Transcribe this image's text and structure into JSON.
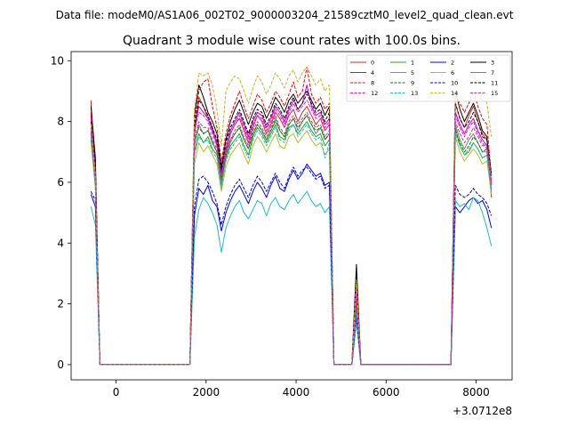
{
  "figure": {
    "suptitle": "Data file: modeM0/AS1A06_002T02_9000003204_21589cztM0_level2_quad_clean.evt"
  },
  "chart_data": {
    "type": "line",
    "title": "Quadrant 3 module wise count rates with 100.0s bins.",
    "xlabel": "",
    "ylabel": "",
    "x_offset_label": "+3.0712e8",
    "xlim": [
      -1000,
      8800
    ],
    "ylim": [
      -0.5,
      10.3
    ],
    "xticks": [
      0,
      2000,
      4000,
      6000,
      8000
    ],
    "xtick_labels": [
      "0",
      "2000",
      "4000",
      "6000",
      "8000"
    ],
    "yticks": [
      0,
      2,
      4,
      6,
      8,
      10
    ],
    "ytick_labels": [
      "0",
      "2",
      "4",
      "6",
      "8",
      "10"
    ],
    "grid": false,
    "legend_position": "top-right",
    "legend_columns": 4,
    "x": [
      -560,
      -460,
      -360,
      -260,
      1640,
      1740,
      1840,
      1940,
      2040,
      2140,
      2240,
      2340,
      2440,
      2540,
      2640,
      2740,
      2840,
      2940,
      3040,
      3140,
      3240,
      3340,
      3440,
      3540,
      3640,
      3740,
      3840,
      3940,
      4040,
      4140,
      4240,
      4340,
      4440,
      4540,
      4640,
      4740,
      4840,
      4940,
      5240,
      5340,
      5440,
      7440,
      7540,
      7640,
      7740,
      7840,
      7940,
      8040,
      8140,
      8240,
      8340
    ],
    "series": [
      {
        "name": "0",
        "style": "solid",
        "color": "#d62728",
        "values": [
          8.7,
          6.2,
          0.0,
          0.0,
          0.0,
          7.5,
          8.8,
          8.5,
          8.1,
          7.8,
          7.2,
          6.2,
          7.0,
          7.6,
          7.9,
          8.1,
          7.7,
          7.3,
          7.8,
          8.2,
          8.0,
          7.6,
          7.9,
          8.3,
          8.1,
          7.8,
          8.2,
          8.4,
          8.0,
          8.3,
          8.5,
          8.2,
          7.9,
          8.1,
          7.7,
          7.9,
          0.0,
          0.0,
          0.0,
          2.2,
          0.0,
          0.0,
          8.6,
          8.1,
          7.8,
          8.2,
          8.5,
          8.0,
          7.6,
          7.4,
          5.5
        ]
      },
      {
        "name": "1",
        "style": "solid",
        "color": "#2ca02c",
        "values": [
          7.4,
          5.9,
          0.0,
          0.0,
          0.0,
          7.0,
          7.6,
          7.3,
          7.5,
          7.1,
          6.9,
          5.9,
          6.8,
          7.2,
          7.4,
          7.6,
          7.2,
          6.9,
          7.5,
          7.8,
          7.6,
          7.3,
          7.6,
          7.9,
          7.5,
          7.4,
          7.8,
          7.9,
          7.6,
          7.8,
          8.0,
          7.7,
          7.5,
          7.6,
          7.2,
          7.4,
          0.0,
          0.0,
          0.0,
          1.8,
          0.0,
          0.0,
          7.8,
          7.2,
          6.9,
          7.0,
          7.3,
          7.1,
          6.8,
          6.9,
          5.8
        ]
      },
      {
        "name": "2",
        "style": "solid",
        "color": "#0000ff",
        "values": [
          5.6,
          5.2,
          0.0,
          0.0,
          0.0,
          4.9,
          5.8,
          5.6,
          5.9,
          5.4,
          5.2,
          4.4,
          5.0,
          5.4,
          5.7,
          5.9,
          5.6,
          5.3,
          5.7,
          6.0,
          5.8,
          5.5,
          5.9,
          6.2,
          5.8,
          5.7,
          6.1,
          6.4,
          6.1,
          6.3,
          6.6,
          6.4,
          6.2,
          6.3,
          5.9,
          6.0,
          0.0,
          0.0,
          0.0,
          1.5,
          0.0,
          0.0,
          5.2,
          5.0,
          5.2,
          5.4,
          5.5,
          5.3,
          5.4,
          5.1,
          4.5
        ]
      },
      {
        "name": "3",
        "style": "solid",
        "color": "#000000",
        "values": [
          8.5,
          6.8,
          0.0,
          0.0,
          0.0,
          8.2,
          9.2,
          8.8,
          8.3,
          8.0,
          7.6,
          6.5,
          7.4,
          8.0,
          8.4,
          8.7,
          8.3,
          7.9,
          8.3,
          8.6,
          8.5,
          8.1,
          8.4,
          8.8,
          8.6,
          8.3,
          8.7,
          8.9,
          8.6,
          8.8,
          9.0,
          8.7,
          8.4,
          8.6,
          8.2,
          8.5,
          0.0,
          0.0,
          0.0,
          3.3,
          0.0,
          0.0,
          9.0,
          8.4,
          8.0,
          8.3,
          8.6,
          8.2,
          7.7,
          7.5,
          5.6
        ]
      },
      {
        "name": "4",
        "style": "solid",
        "color": "#bf00bf",
        "values": [
          8.2,
          6.5,
          0.0,
          0.0,
          0.0,
          7.8,
          8.5,
          8.3,
          8.1,
          7.7,
          7.3,
          6.3,
          7.1,
          7.7,
          8.0,
          8.3,
          7.9,
          7.5,
          8.0,
          8.3,
          8.2,
          7.8,
          8.1,
          8.5,
          8.3,
          8.0,
          8.4,
          8.7,
          8.4,
          8.6,
          9.2,
          8.5,
          8.2,
          8.3,
          7.9,
          8.1,
          0.0,
          0.0,
          0.0,
          2.5,
          0.0,
          0.0,
          8.3,
          7.9,
          7.6,
          7.9,
          8.1,
          7.7,
          7.4,
          7.2,
          5.9
        ]
      },
      {
        "name": "5",
        "style": "solid",
        "color": "#17becf",
        "values": [
          5.2,
          4.6,
          0.0,
          0.0,
          0.0,
          4.2,
          5.1,
          5.5,
          5.3,
          5.0,
          4.6,
          3.7,
          4.5,
          4.9,
          5.2,
          5.4,
          5.0,
          4.8,
          5.1,
          5.4,
          5.3,
          4.9,
          5.3,
          5.5,
          5.2,
          5.1,
          5.4,
          5.6,
          5.3,
          5.5,
          5.7,
          5.4,
          5.2,
          5.3,
          5.0,
          5.2,
          0.0,
          0.0,
          0.0,
          1.4,
          0.0,
          0.0,
          5.4,
          5.2,
          5.3,
          5.1,
          5.5,
          5.4,
          5.0,
          4.5,
          3.9
        ]
      },
      {
        "name": "6",
        "style": "solid",
        "color": "#bcbd22",
        "values": [
          7.3,
          5.8,
          0.0,
          0.0,
          0.0,
          6.6,
          7.3,
          7.0,
          7.2,
          6.9,
          6.6,
          5.7,
          6.5,
          6.9,
          7.1,
          7.3,
          6.9,
          6.6,
          7.2,
          7.5,
          7.3,
          7.0,
          7.3,
          7.6,
          7.2,
          7.1,
          7.5,
          7.6,
          7.3,
          7.5,
          7.7,
          7.4,
          7.2,
          7.3,
          6.9,
          7.1,
          0.0,
          0.0,
          0.0,
          1.7,
          0.0,
          0.0,
          7.5,
          7.0,
          6.7,
          6.9,
          7.1,
          6.9,
          6.6,
          6.7,
          5.6
        ]
      },
      {
        "name": "7",
        "style": "solid",
        "color": "#7f7f7f",
        "values": [
          7.8,
          6.0,
          0.0,
          0.0,
          0.0,
          7.2,
          7.9,
          7.6,
          7.7,
          7.3,
          7.0,
          6.0,
          6.9,
          7.3,
          7.6,
          7.8,
          7.4,
          7.1,
          7.6,
          7.9,
          7.7,
          7.4,
          7.7,
          8.0,
          7.7,
          7.5,
          7.9,
          8.1,
          7.7,
          8.0,
          8.2,
          7.9,
          7.6,
          7.8,
          7.4,
          7.6,
          0.0,
          0.0,
          0.0,
          1.9,
          0.0,
          0.0,
          7.9,
          7.4,
          7.1,
          7.4,
          7.6,
          7.3,
          7.0,
          7.0,
          5.7
        ]
      },
      {
        "name": "8",
        "style": "dashed",
        "color": "#ff0000",
        "values": [
          8.3,
          6.4,
          0.0,
          0.0,
          0.0,
          8.0,
          9.0,
          9.3,
          9.4,
          8.5,
          7.8,
          6.7,
          7.6,
          8.2,
          8.6,
          9.0,
          8.5,
          8.1,
          8.5,
          8.9,
          8.7,
          8.3,
          8.6,
          9.0,
          8.8,
          8.5,
          8.9,
          9.3,
          8.8,
          9.0,
          9.8,
          8.9,
          8.6,
          8.8,
          8.4,
          8.6,
          0.0,
          0.0,
          0.0,
          2.6,
          0.0,
          0.0,
          8.9,
          8.6,
          8.3,
          8.6,
          9.0,
          8.5,
          8.1,
          7.9,
          6.2
        ]
      },
      {
        "name": "9",
        "style": "dashed",
        "color": "#008000",
        "values": [
          7.6,
          6.1,
          0.0,
          0.0,
          0.0,
          7.3,
          7.8,
          7.6,
          7.7,
          7.3,
          7.0,
          6.1,
          6.9,
          7.4,
          7.6,
          7.8,
          7.4,
          7.1,
          7.6,
          7.9,
          7.7,
          7.4,
          7.7,
          8.1,
          7.7,
          7.5,
          7.9,
          8.1,
          7.8,
          8.0,
          8.2,
          7.9,
          7.7,
          7.8,
          7.4,
          7.6,
          0.0,
          0.0,
          0.0,
          1.8,
          0.0,
          0.0,
          7.7,
          7.3,
          7.0,
          7.2,
          7.5,
          7.3,
          7.0,
          7.1,
          6.0
        ]
      },
      {
        "name": "10",
        "style": "dashed",
        "color": "#0000ff",
        "values": [
          5.7,
          5.4,
          0.0,
          0.0,
          0.0,
          5.2,
          6.1,
          6.2,
          6.0,
          5.7,
          5.3,
          4.6,
          5.2,
          5.6,
          5.9,
          6.1,
          5.8,
          5.5,
          5.9,
          6.2,
          6.0,
          5.7,
          6.0,
          6.3,
          6.0,
          5.8,
          6.2,
          6.5,
          6.2,
          6.4,
          6.5,
          6.3,
          6.1,
          6.2,
          5.8,
          5.9,
          0.0,
          0.0,
          0.0,
          1.6,
          0.0,
          0.0,
          5.9,
          5.6,
          5.5,
          5.6,
          5.8,
          5.6,
          5.5,
          5.3,
          4.9
        ]
      },
      {
        "name": "11",
        "style": "dashed",
        "color": "#000000",
        "values": [
          8.0,
          6.6,
          0.0,
          0.0,
          0.0,
          7.9,
          8.7,
          8.5,
          8.2,
          7.8,
          7.4,
          6.4,
          7.3,
          7.8,
          8.1,
          8.4,
          8.0,
          7.6,
          8.1,
          8.4,
          8.3,
          7.9,
          8.2,
          8.6,
          8.4,
          8.1,
          8.5,
          8.8,
          8.4,
          8.6,
          8.9,
          8.6,
          8.3,
          8.4,
          8.0,
          8.3,
          0.0,
          0.0,
          0.0,
          3.0,
          0.0,
          0.0,
          8.6,
          8.1,
          7.8,
          8.0,
          8.3,
          8.0,
          7.5,
          7.4,
          6.3
        ]
      },
      {
        "name": "12",
        "style": "dashed",
        "color": "#ff00ff",
        "values": [
          8.1,
          6.3,
          0.0,
          0.0,
          0.0,
          7.7,
          8.3,
          8.2,
          8.0,
          7.6,
          7.2,
          6.2,
          7.1,
          7.6,
          7.9,
          8.2,
          7.8,
          7.4,
          7.9,
          8.2,
          8.1,
          7.7,
          8.0,
          8.4,
          8.2,
          7.9,
          8.3,
          8.6,
          8.3,
          8.5,
          8.7,
          8.4,
          8.1,
          8.2,
          7.8,
          8.0,
          0.0,
          0.0,
          0.0,
          2.4,
          0.0,
          0.0,
          8.2,
          7.8,
          7.5,
          7.8,
          8.0,
          7.6,
          7.3,
          7.1,
          6.0
        ]
      },
      {
        "name": "13",
        "style": "dashed",
        "color": "#17becf",
        "values": [
          7.5,
          5.9,
          0.0,
          0.0,
          0.0,
          6.9,
          7.5,
          7.3,
          7.4,
          7.0,
          6.8,
          5.8,
          6.7,
          7.1,
          7.3,
          7.5,
          7.1,
          6.8,
          7.4,
          7.7,
          7.5,
          7.2,
          7.5,
          7.8,
          7.4,
          7.3,
          7.7,
          7.9,
          7.5,
          7.7,
          7.9,
          7.6,
          7.4,
          7.5,
          6.8,
          7.3,
          0.0,
          0.0,
          0.0,
          1.7,
          0.0,
          0.0,
          7.6,
          7.2,
          6.9,
          7.1,
          7.3,
          7.1,
          6.8,
          6.9,
          5.8
        ]
      },
      {
        "name": "14",
        "style": "dashed",
        "color": "#bcbd22",
        "values": [
          7.9,
          6.2,
          0.0,
          0.0,
          0.0,
          8.4,
          9.6,
          9.5,
          9.6,
          9.2,
          8.4,
          7.2,
          9.0,
          9.3,
          9.5,
          9.4,
          9.0,
          8.6,
          9.1,
          9.5,
          9.3,
          8.9,
          9.2,
          9.6,
          9.4,
          9.1,
          9.5,
          9.7,
          9.3,
          9.6,
          9.8,
          9.5,
          9.2,
          9.4,
          9.0,
          9.2,
          0.0,
          0.0,
          0.0,
          2.8,
          0.0,
          0.0,
          9.0,
          9.1,
          9.2,
          9.4,
          9.6,
          9.3,
          9.0,
          8.6,
          7.5
        ]
      },
      {
        "name": "15",
        "style": "dashed",
        "color": "#bf3f7f",
        "values": [
          7.7,
          6.0,
          0.0,
          0.0,
          0.0,
          7.4,
          8.0,
          7.8,
          7.8,
          7.4,
          7.1,
          6.1,
          7.0,
          7.4,
          7.7,
          7.9,
          7.5,
          7.2,
          7.7,
          8.0,
          7.8,
          7.5,
          7.8,
          8.2,
          7.8,
          7.6,
          8.0,
          8.2,
          7.9,
          8.1,
          8.3,
          8.0,
          7.8,
          7.9,
          7.5,
          7.7,
          0.0,
          0.0,
          0.0,
          2.0,
          0.0,
          0.0,
          8.0,
          7.6,
          7.3,
          7.5,
          7.8,
          7.5,
          7.2,
          7.2,
          6.1
        ]
      }
    ]
  }
}
